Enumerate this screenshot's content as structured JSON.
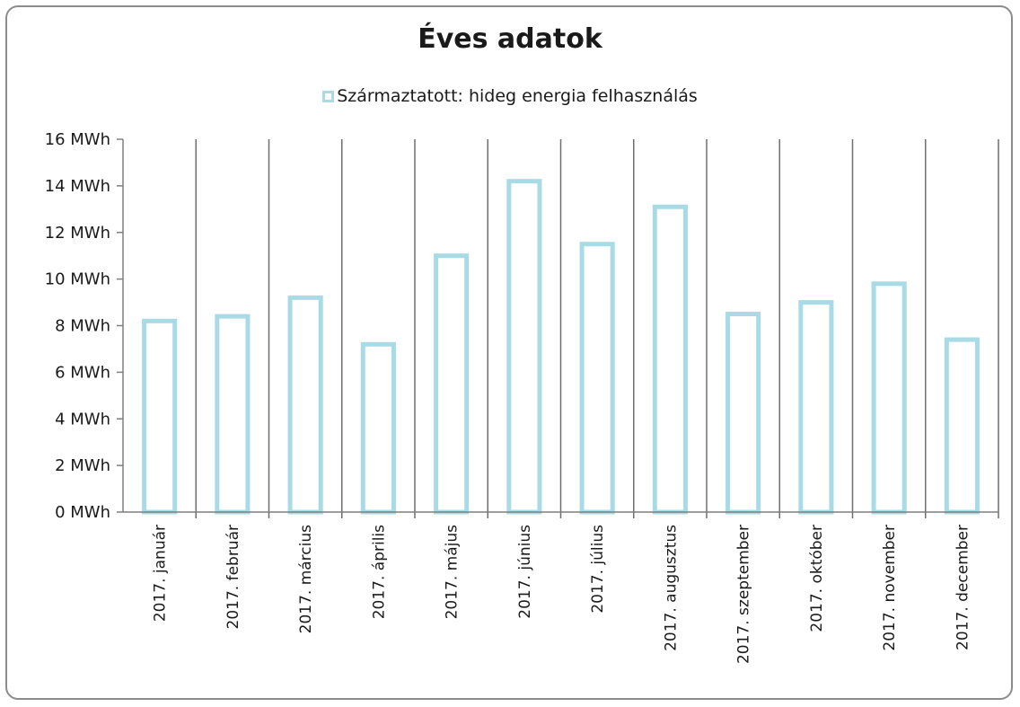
{
  "chart_data": {
    "type": "bar",
    "title": "Éves adatok",
    "xlabel": "",
    "ylabel": "",
    "unit": "MWh",
    "ylim": [
      0,
      16
    ],
    "yticks": [
      0,
      2,
      4,
      6,
      8,
      10,
      12,
      14,
      16
    ],
    "ytick_labels": [
      "0 MWh",
      "2 MWh",
      "4 MWh",
      "6 MWh",
      "8 MWh",
      "10 MWh",
      "12 MWh",
      "14 MWh",
      "16 MWh"
    ],
    "categories": [
      "2017. január",
      "2017. február",
      "2017. március",
      "2017. április",
      "2017. május",
      "2017. június",
      "2017. július",
      "2017. augusztus",
      "2017. szeptember",
      "2017. október",
      "2017. november",
      "2017. december"
    ],
    "series": [
      {
        "name": "Származtatott: hideg energia felhasználás",
        "color": "#a8dbe6",
        "values": [
          8.2,
          8.4,
          9.2,
          7.2,
          11.0,
          14.2,
          11.5,
          13.1,
          8.5,
          9.0,
          9.8,
          7.4
        ]
      }
    ],
    "legend_position": "top",
    "grid": "vertical category separators"
  }
}
